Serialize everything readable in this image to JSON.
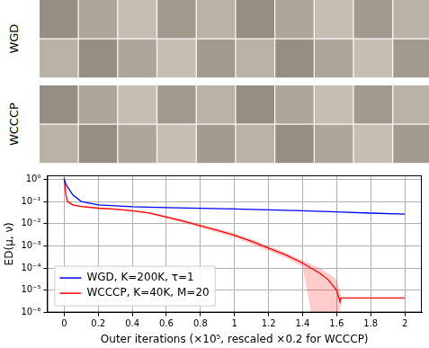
{
  "panels": {
    "rows": [
      "WGD",
      "WCCCP"
    ]
  },
  "chart_data": {
    "type": "line",
    "x_label": "Outer iterations (×10⁵, rescaled ×0.2 for WCCCP)",
    "y_label": "ED(μ, ν)",
    "log": "y",
    "grid": true,
    "legend": "lower left",
    "xlim": [
      -0.1,
      2.1
    ],
    "xticks": [
      0,
      0.2,
      0.4,
      0.6,
      0.8,
      1,
      1.2,
      1.4,
      1.6,
      1.8,
      2
    ],
    "ylim": [
      1e-06,
      1.5
    ],
    "yticks": [
      {
        "value": 1e-06,
        "label": "10⁻⁶"
      },
      {
        "value": 1e-05,
        "label": "10⁻⁵"
      },
      {
        "value": 0.0001,
        "label": "10⁻⁴"
      },
      {
        "value": 0.001,
        "label": "10⁻³"
      },
      {
        "value": 0.01,
        "label": "10⁻²"
      },
      {
        "value": 0.1,
        "label": "10⁻¹"
      },
      {
        "value": 1,
        "label": "10⁰"
      }
    ],
    "series": [
      {
        "name": "WGD, K=200K, τ=1",
        "color": "#0000ff",
        "x": [
          0,
          0.01,
          0.02,
          0.05,
          0.1,
          0.2,
          0.4,
          0.6,
          0.8,
          1.0,
          1.2,
          1.4,
          1.6,
          1.8,
          2.0
        ],
        "values": [
          1.0,
          0.6,
          0.45,
          0.2,
          0.1,
          0.07,
          0.058,
          0.053,
          0.049,
          0.046,
          0.042,
          0.038,
          0.034,
          0.03,
          0.027
        ]
      },
      {
        "name": "WCCCP, K=40K, M=20",
        "color": "#ff0000",
        "x": [
          0,
          0.01,
          0.02,
          0.05,
          0.1,
          0.2,
          0.3,
          0.4,
          0.5,
          0.6,
          0.7,
          0.8,
          0.9,
          1.0,
          1.1,
          1.2,
          1.3,
          1.4,
          1.45,
          1.5,
          1.55,
          1.6,
          1.62,
          1.625,
          2.0
        ],
        "values": [
          1.2,
          0.2,
          0.1,
          0.07,
          0.06,
          0.05,
          0.045,
          0.038,
          0.03,
          0.02,
          0.013,
          0.008,
          0.005,
          0.003,
          0.0016,
          0.0008,
          0.0004,
          0.00017,
          0.0001,
          6e-05,
          3e-05,
          1e-05,
          3e-06,
          4.5e-06,
          4.5e-06
        ],
        "upper": [
          1.3,
          0.22,
          0.11,
          0.075,
          0.064,
          0.053,
          0.048,
          0.041,
          0.033,
          0.023,
          0.015,
          0.0095,
          0.006,
          0.0037,
          0.002,
          0.001,
          0.0005,
          0.00023,
          0.00015,
          0.0001,
          6e-05,
          3e-05,
          1e-05,
          4.5e-06,
          4.5e-06
        ],
        "lower": [
          1.1,
          0.18,
          0.09,
          0.065,
          0.056,
          0.047,
          0.042,
          0.035,
          0.027,
          0.017,
          0.011,
          0.0067,
          0.004,
          0.0024,
          0.0012,
          0.0006,
          0.0003,
          0.00012,
          1e-06,
          1e-06,
          1e-06,
          1e-06,
          1e-06,
          4.5e-06,
          4.5e-06
        ]
      }
    ]
  }
}
